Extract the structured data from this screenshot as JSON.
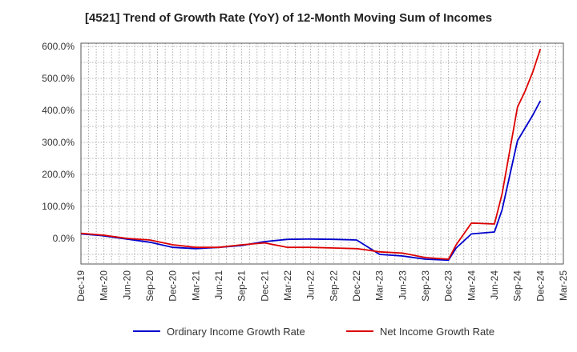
{
  "chart_data": {
    "type": "line",
    "title": "[4521]  Trend of Growth Rate (YoY) of 12-Month Moving Sum of Incomes",
    "xlabel": "",
    "ylabel": "",
    "ylim": [
      -80,
      610
    ],
    "yticks": [
      0,
      100,
      200,
      300,
      400,
      500,
      600
    ],
    "ytick_labels": [
      "0.0%",
      "100.0%",
      "200.0%",
      "300.0%",
      "400.0%",
      "500.0%",
      "600.0%"
    ],
    "x_tick_labels": [
      "Dec-19",
      "Mar-20",
      "Jun-20",
      "Sep-20",
      "Dec-20",
      "Mar-21",
      "Jun-21",
      "Sep-21",
      "Dec-21",
      "Mar-22",
      "Jun-22",
      "Sep-22",
      "Dec-22",
      "Mar-23",
      "Jun-23",
      "Sep-23",
      "Dec-23",
      "Mar-24",
      "Jun-24",
      "Sep-24",
      "Dec-24",
      "Mar-25"
    ],
    "grid": true,
    "legend_position": "bottom",
    "x": [
      "Dec-19",
      "Mar-20",
      "Jun-20",
      "Sep-20",
      "Dec-20",
      "Mar-21",
      "Jun-21",
      "Sep-21",
      "Dec-21",
      "Mar-22",
      "Jun-22",
      "Sep-22",
      "Dec-22",
      "Jan-23",
      "Mar-23",
      "Jun-23",
      "Sep-23",
      "Dec-23",
      "Jan-24",
      "Mar-24",
      "Jun-24",
      "Jul-24",
      "Sep-24",
      "Oct-24",
      "Nov-24",
      "Dec-24"
    ],
    "series": [
      {
        "name": "Ordinary Income Growth Rate",
        "color": "#0000cc",
        "values": [
          14,
          8,
          -2,
          -12,
          -28,
          -32,
          -28,
          -22,
          -10,
          -3,
          -2,
          -3,
          -5,
          -20,
          -50,
          -55,
          -65,
          -68,
          -30,
          14,
          20,
          90,
          305,
          345,
          385,
          430
        ]
      },
      {
        "name": "Net Income Growth Rate",
        "color": "#dd0000",
        "values": [
          16,
          10,
          0,
          -5,
          -20,
          -28,
          -28,
          -20,
          -14,
          -28,
          -28,
          -30,
          -32,
          -35,
          -42,
          -46,
          -60,
          -65,
          -20,
          48,
          45,
          140,
          410,
          460,
          520,
          592
        ]
      }
    ]
  }
}
